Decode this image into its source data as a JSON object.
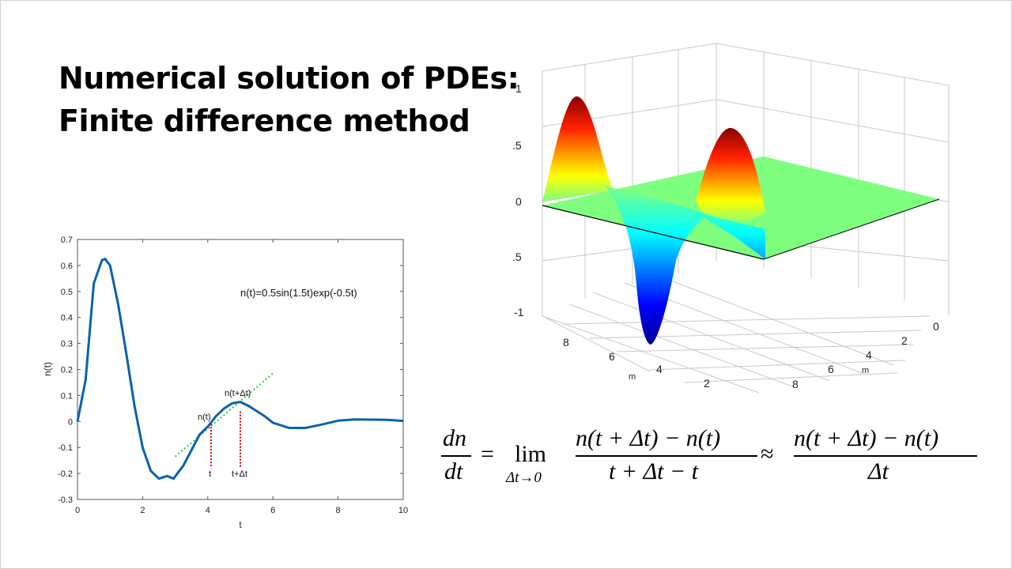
{
  "slide": {
    "title_line1": "Numerical solution of PDEs:",
    "title_line2": "Finite difference method"
  },
  "plot2d": {
    "legend_text": "n(t)=0.5sin(1.5t)exp(-0.5t)",
    "xlabel": "t",
    "ylabel": "n(t)",
    "annotation_nt": "n(t)",
    "annotation_ntdt": "n(t+Δt)",
    "marker_t": "t",
    "marker_tdt": "t+Δt",
    "series_color": "#0a62ad",
    "tangent_color": "#33cc33",
    "marker_color": "#cc0000"
  },
  "chart_data": [
    {
      "type": "line",
      "title": "",
      "xlabel": "t",
      "ylabel": "n(t)",
      "xlim": [
        0,
        10
      ],
      "ylim": [
        -0.3,
        0.7
      ],
      "xticks": [
        "0",
        "2",
        "4",
        "6",
        "8",
        "10"
      ],
      "yticks": [
        "-0.3",
        "-0.2",
        "-0.1",
        "0",
        "0.1",
        "0.2",
        "0.3",
        "0.4",
        "0.5",
        "0.6",
        "0.7"
      ],
      "function": "0.5*sin(1.5*t)*exp(-0.5*t)",
      "series": [
        {
          "x": [
            0,
            0.25,
            0.5,
            0.75,
            0.85,
            1.0,
            1.25,
            1.5,
            1.75,
            2.0,
            2.25,
            2.5,
            2.75,
            2.95,
            3.25,
            3.5,
            3.75,
            4.0,
            4.25,
            4.5,
            4.75,
            5.0,
            5.25,
            5.5,
            5.75,
            6.0,
            6.5,
            7.0,
            7.5,
            8.0,
            8.5,
            9.0,
            9.5,
            10.0
          ],
          "y": [
            0.0,
            0.16,
            0.53,
            0.62,
            0.625,
            0.6,
            0.45,
            0.26,
            0.06,
            -0.1,
            -0.19,
            -0.22,
            -0.21,
            -0.22,
            -0.17,
            -0.11,
            -0.05,
            -0.02,
            0.02,
            0.05,
            0.07,
            0.075,
            0.06,
            0.04,
            0.02,
            -0.005,
            -0.025,
            -0.025,
            -0.012,
            0.003,
            0.008,
            0.007,
            0.006,
            0.002
          ]
        }
      ],
      "annotations": [
        "n(t)=0.5sin(1.5t)exp(-0.5t)",
        "n(t)",
        "n(t+Δt)",
        "t",
        "t+Δt"
      ],
      "markers_x": [
        4.1,
        5.0
      ],
      "tangent": {
        "x": [
          3.0,
          6.0
        ],
        "y": [
          -0.135,
          0.185
        ]
      },
      "grid": false
    },
    {
      "type": "surface",
      "title": "",
      "zticks": [
        "1",
        ".5",
        "0",
        ".5",
        "-1"
      ],
      "axis1_ticks": [
        "8",
        "6",
        "4",
        "2"
      ],
      "axis1_label": "m",
      "axis2_ticks": [
        "0",
        "2",
        "4",
        "6",
        "8"
      ],
      "axis2_label": "m",
      "colormap": "jet",
      "grid": true
    }
  ],
  "equation": {
    "lhs_num": "dn",
    "lhs_den": "dt",
    "equals": "=",
    "lim": "lim",
    "lim_sub": "Δt→0",
    "frac1_num": "n(t + Δt) − n(t)",
    "frac1_den": "t + Δt − t",
    "approx": "≈",
    "frac2_num": "n(t + Δt) − n(t)",
    "frac2_den": "Δt"
  }
}
